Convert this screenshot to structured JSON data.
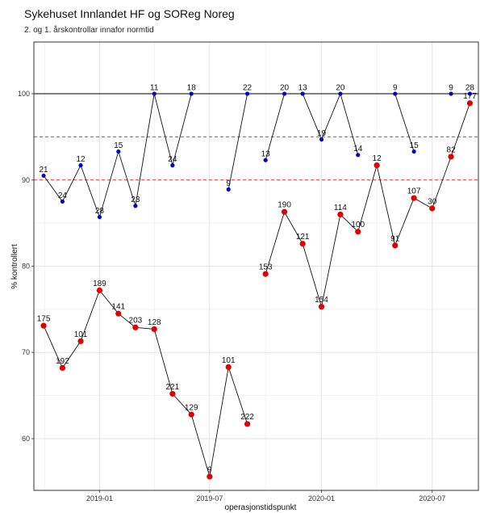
{
  "chart_data": {
    "type": "line",
    "title": "Sykehuset Innlandet HF og SOReg Noreg",
    "subtitle": "2. og 1. årskontrollar innafor normtid",
    "xlabel": "operasjonstidspunkt",
    "ylabel": "% kontrollert",
    "ylim": [
      54,
      106
    ],
    "yticks": [
      60,
      70,
      80,
      90,
      100
    ],
    "xticks": [
      {
        "date": "2019-01-01",
        "label": "2019-01"
      },
      {
        "date": "2019-07-01",
        "label": "2019-07"
      },
      {
        "date": "2020-01-01",
        "label": "2020-01"
      },
      {
        "date": "2020-07-01",
        "label": "2020-07"
      }
    ],
    "xlim": [
      "2018-09-15",
      "2020-09-15"
    ],
    "reference_lines": [
      {
        "y": 100,
        "style": "solid",
        "color": "#000000"
      },
      {
        "y": 95,
        "style": "dashed",
        "color": "#ff3333"
      },
      {
        "y": 90,
        "style": "dashed",
        "color": "#ff3333"
      }
    ],
    "series": [
      {
        "color": "#0000cc",
        "marker": "small",
        "segments": [
          [
            {
              "x": "2018-10-01",
              "y": 90.5,
              "label": "21"
            },
            {
              "x": "2018-11-01",
              "y": 87.5,
              "label": "24"
            },
            {
              "x": "2018-12-01",
              "y": 91.7,
              "label": "12"
            },
            {
              "x": "2019-01-01",
              "y": 85.7,
              "label": "28"
            },
            {
              "x": "2019-02-01",
              "y": 93.3,
              "label": "15"
            },
            {
              "x": "2019-03-01",
              "y": 87.0,
              "label": "23"
            },
            {
              "x": "2019-04-01",
              "y": 100.0,
              "label": "11"
            },
            {
              "x": "2019-05-01",
              "y": 91.7,
              "label": "24"
            },
            {
              "x": "2019-06-01",
              "y": 100.0,
              "label": "18"
            }
          ],
          [
            {
              "x": "2019-08-01",
              "y": 88.9,
              "label": "9"
            },
            {
              "x": "2019-09-01",
              "y": 100.0,
              "label": "22"
            }
          ],
          [
            {
              "x": "2019-10-01",
              "y": 92.3,
              "label": "13"
            },
            {
              "x": "2019-11-01",
              "y": 100.0,
              "label": "20"
            }
          ],
          [
            {
              "x": "2019-12-01",
              "y": 100.0,
              "label": "13"
            },
            {
              "x": "2020-01-01",
              "y": 94.7,
              "label": "19"
            },
            {
              "x": "2020-02-01",
              "y": 100.0,
              "label": "20"
            },
            {
              "x": "2020-03-01",
              "y": 92.9,
              "label": "14"
            }
          ],
          [
            {
              "x": "2020-05-01",
              "y": 100.0,
              "label": "9"
            },
            {
              "x": "2020-06-01",
              "y": 93.3,
              "label": "15"
            }
          ],
          [
            {
              "x": "2020-08-01",
              "y": 100.0,
              "label": "9"
            },
            {
              "x": "2020-09-01",
              "y": 100.0,
              "label": "28"
            }
          ]
        ]
      },
      {
        "color": "#e00000",
        "marker": "large",
        "segments": [
          [
            {
              "x": "2018-10-01",
              "y": 73.1,
              "label": "175"
            },
            {
              "x": "2018-11-01",
              "y": 68.2,
              "label": "192"
            },
            {
              "x": "2018-12-01",
              "y": 71.3,
              "label": "101"
            },
            {
              "x": "2019-01-01",
              "y": 77.2,
              "label": "189"
            },
            {
              "x": "2019-02-01",
              "y": 74.5,
              "label": "141"
            },
            {
              "x": "2019-03-01",
              "y": 72.9,
              "label": "203"
            },
            {
              "x": "2019-04-01",
              "y": 72.7,
              "label": "128"
            },
            {
              "x": "2019-05-01",
              "y": 65.2,
              "label": "221"
            },
            {
              "x": "2019-06-01",
              "y": 62.8,
              "label": "129"
            },
            {
              "x": "2019-07-01",
              "y": 55.6,
              "label": "9"
            },
            {
              "x": "2019-08-01",
              "y": 68.3,
              "label": "101"
            },
            {
              "x": "2019-09-01",
              "y": 61.7,
              "label": "222"
            }
          ],
          [
            {
              "x": "2019-10-01",
              "y": 79.1,
              "label": "153"
            },
            {
              "x": "2019-11-01",
              "y": 86.3,
              "label": "190"
            },
            {
              "x": "2019-12-01",
              "y": 82.6,
              "label": "121"
            },
            {
              "x": "2020-01-01",
              "y": 75.3,
              "label": "154"
            },
            {
              "x": "2020-02-01",
              "y": 86.0,
              "label": "114"
            },
            {
              "x": "2020-03-01",
              "y": 84.0,
              "label": "100"
            },
            {
              "x": "2020-04-01",
              "y": 91.7,
              "label": "12"
            },
            {
              "x": "2020-05-01",
              "y": 82.4,
              "label": "91"
            },
            {
              "x": "2020-06-01",
              "y": 87.9,
              "label": "107"
            },
            {
              "x": "2020-07-01",
              "y": 86.7,
              "label": "30"
            },
            {
              "x": "2020-08-01",
              "y": 92.7,
              "label": "82"
            },
            {
              "x": "2020-09-01",
              "y": 98.9,
              "label": "177"
            }
          ]
        ]
      }
    ],
    "grid": true
  }
}
